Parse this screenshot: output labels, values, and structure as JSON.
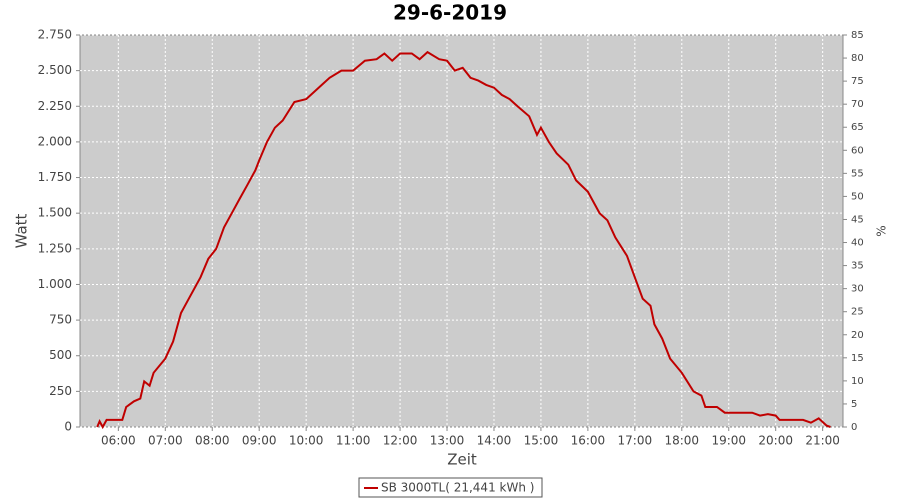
{
  "chart_data": {
    "type": "line",
    "title": "29-6-2019",
    "xlabel": "Zeit",
    "ylabel": "Watt",
    "y2label": "%",
    "x": [
      "05:33",
      "05:36",
      "05:40",
      "05:45",
      "05:55",
      "06:05",
      "06:10",
      "06:20",
      "06:28",
      "06:33",
      "06:40",
      "06:45",
      "07:00",
      "07:10",
      "07:20",
      "07:30",
      "07:45",
      "07:55",
      "08:05",
      "08:15",
      "08:25",
      "08:35",
      "08:45",
      "08:55",
      "09:00",
      "09:10",
      "09:20",
      "09:30",
      "09:45",
      "10:00",
      "10:10",
      "10:20",
      "10:30",
      "10:45",
      "11:00",
      "11:15",
      "11:30",
      "11:40",
      "11:50",
      "12:00",
      "12:15",
      "12:25",
      "12:35",
      "12:50",
      "13:00",
      "13:10",
      "13:20",
      "13:30",
      "13:40",
      "13:50",
      "14:00",
      "14:10",
      "14:20",
      "14:30",
      "14:45",
      "14:55",
      "15:00",
      "15:10",
      "15:20",
      "15:35",
      "15:45",
      "16:00",
      "16:15",
      "16:25",
      "16:35",
      "16:50",
      "17:00",
      "17:10",
      "17:20",
      "17:25",
      "17:35",
      "17:45",
      "18:00",
      "18:15",
      "18:25",
      "18:30",
      "18:45",
      "18:55",
      "19:10",
      "19:30",
      "19:40",
      "19:50",
      "20:00",
      "20:05",
      "20:20",
      "20:35",
      "20:45",
      "20:55",
      "21:05",
      "21:10"
    ],
    "series": [
      {
        "name": "SB 3000TL( 21,441 kWh )",
        "color": "#c00000",
        "values": [
          0,
          40,
          0,
          50,
          50,
          50,
          140,
          180,
          200,
          320,
          290,
          380,
          480,
          600,
          800,
          900,
          1050,
          1180,
          1250,
          1400,
          1500,
          1600,
          1700,
          1800,
          1870,
          2000,
          2100,
          2150,
          2280,
          2300,
          2350,
          2400,
          2450,
          2500,
          2500,
          2570,
          2580,
          2620,
          2570,
          2620,
          2620,
          2580,
          2630,
          2580,
          2570,
          2500,
          2520,
          2450,
          2430,
          2400,
          2380,
          2330,
          2300,
          2250,
          2180,
          2050,
          2100,
          2000,
          1920,
          1840,
          1730,
          1650,
          1500,
          1450,
          1330,
          1200,
          1050,
          900,
          850,
          720,
          620,
          480,
          380,
          250,
          220,
          140,
          140,
          100,
          100,
          100,
          80,
          90,
          80,
          50,
          50,
          50,
          30,
          60,
          10,
          0
        ]
      }
    ],
    "xlim": [
      "05:11",
      "21:26"
    ],
    "xticks": [
      "06:00",
      "07:00",
      "08:00",
      "09:00",
      "10:00",
      "11:00",
      "12:00",
      "13:00",
      "14:00",
      "15:00",
      "16:00",
      "17:00",
      "18:00",
      "19:00",
      "20:00",
      "21:00"
    ],
    "ylim": [
      0,
      2750
    ],
    "yticks": [
      0,
      250,
      500,
      750,
      {
        "value": 1000,
        "label": "1.000"
      },
      {
        "value": 1250,
        "label": "1.250"
      },
      {
        "value": 1500,
        "label": "1.500"
      },
      {
        "value": 1750,
        "label": "1.750"
      },
      {
        "value": 2000,
        "label": "2.000"
      },
      {
        "value": 2250,
        "label": "2.250"
      },
      {
        "value": 2500,
        "label": "2.500"
      },
      {
        "value": 2750,
        "label": "2.750"
      }
    ],
    "y2lim": [
      0,
      85
    ],
    "y2ticks": [
      0,
      5,
      10,
      15,
      20,
      25,
      30,
      35,
      40,
      45,
      50,
      55,
      60,
      65,
      70,
      75,
      80,
      85
    ],
    "grid": true,
    "legend": "bottom"
  }
}
